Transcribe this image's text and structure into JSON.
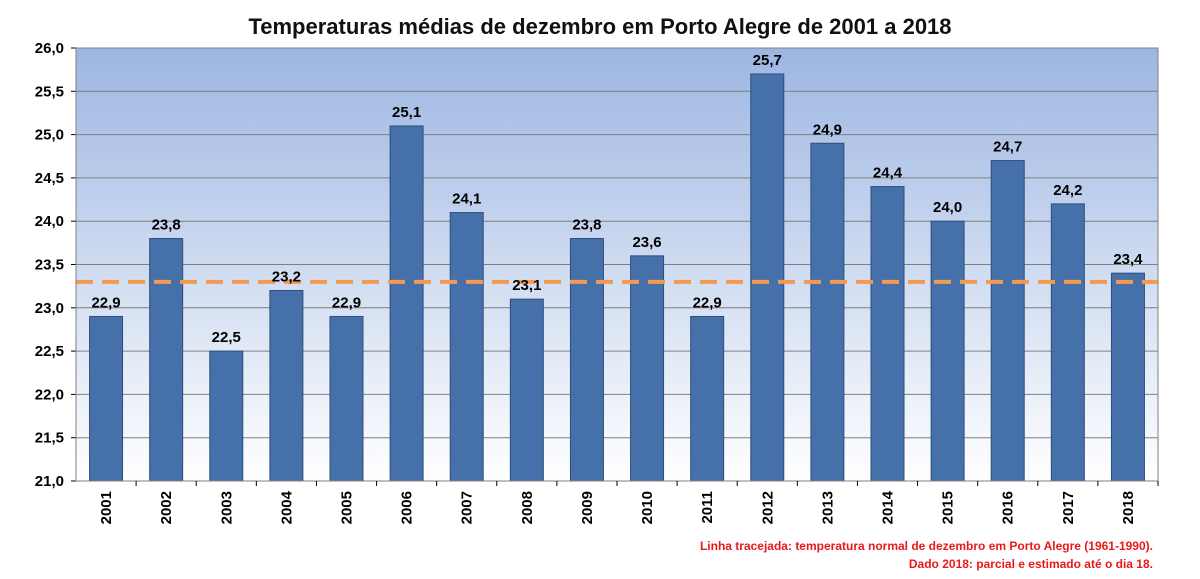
{
  "chart_data": {
    "type": "bar",
    "title": "Temperaturas médias de dezembro em Porto Alegre de 2001 a 2018",
    "categories": [
      "2001",
      "2002",
      "2003",
      "2004",
      "2005",
      "2006",
      "2007",
      "2008",
      "2009",
      "2010",
      "2011",
      "2012",
      "2013",
      "2014",
      "2015",
      "2016",
      "2017",
      "2018"
    ],
    "values": [
      22.9,
      23.8,
      22.5,
      23.2,
      22.9,
      25.1,
      24.1,
      23.1,
      23.8,
      23.6,
      22.9,
      25.7,
      24.9,
      24.4,
      24.0,
      24.7,
      24.2,
      23.4
    ],
    "value_labels": [
      "22,9",
      "23,8",
      "22,5",
      "23,2",
      "22,9",
      "25,1",
      "24,1",
      "23,1",
      "23,8",
      "23,6",
      "22,9",
      "25,7",
      "24,9",
      "24,4",
      "24,0",
      "24,7",
      "24,2",
      "23,4"
    ],
    "ylim": [
      21.0,
      26.0
    ],
    "yticks": [
      21.0,
      21.5,
      22.0,
      22.5,
      23.0,
      23.5,
      24.0,
      24.5,
      25.0,
      25.5,
      26.0
    ],
    "ytick_labels": [
      "21,0",
      "21,5",
      "22,0",
      "22,5",
      "23,0",
      "23,5",
      "24,0",
      "24,5",
      "25,0",
      "25,5",
      "26,0"
    ],
    "reference_line": {
      "value": 23.3,
      "style": "dashed"
    },
    "grid": true,
    "xlabel": "",
    "ylabel": "",
    "notes": [
      "Linha tracejada: temperatura normal de dezembro em Porto Alegre (1961-1990).",
      "Dado 2018: parcial e estimado até o dia 18."
    ]
  },
  "colors": {
    "bar": "#4570a9",
    "bar_edge": "#2e4f7c",
    "plot_bg_top": "#9db6e2",
    "plot_bg_bottom": "#ffffff",
    "reference_line": "#f39a52",
    "gridline": "#7f7f7f",
    "note_text": "#e8191a"
  }
}
